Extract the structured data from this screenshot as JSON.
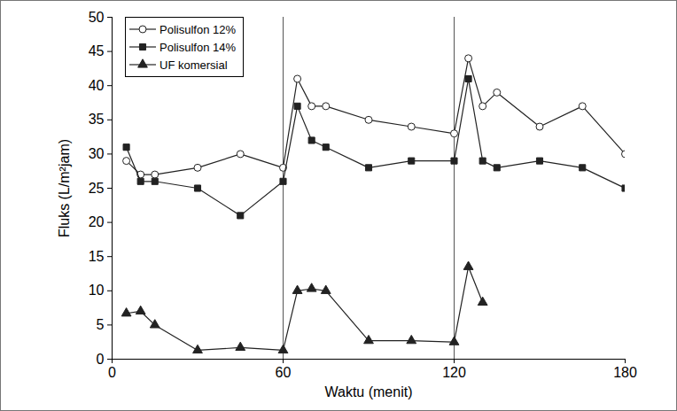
{
  "chart_data": {
    "type": "line",
    "x_label": "Waktu (menit)",
    "y_label": "Fluks (L/m²jam)",
    "x": [
      5,
      10,
      15,
      30,
      45,
      60,
      65,
      70,
      75,
      90,
      105,
      120,
      125,
      130,
      135,
      150,
      165,
      180
    ],
    "series": [
      {
        "name": "Polisulfon 12%",
        "color": "#222222",
        "marker": "circle-open",
        "values": [
          29,
          27,
          27,
          28,
          30,
          28,
          41,
          37,
          37,
          35,
          34,
          33,
          44,
          37,
          39,
          34,
          37,
          30
        ]
      },
      {
        "name": "Polisulfon 14%",
        "color": "#222222",
        "marker": "square",
        "values": [
          31,
          26,
          26,
          25,
          21,
          26,
          37,
          32,
          31,
          28,
          29,
          29,
          41,
          29,
          28,
          29,
          28,
          25
        ]
      },
      {
        "name": "UF komersial",
        "color": "#222222",
        "marker": "triangle",
        "values": [
          6.7,
          7,
          5,
          1.3,
          1.7,
          1.3,
          10,
          10.3,
          10,
          2.7,
          2.7,
          2.5,
          13.5,
          8.3,
          null,
          null,
          null,
          null
        ]
      }
    ],
    "vlines": [
      60,
      120
    ],
    "xlim": [
      0,
      180
    ],
    "xticks": [
      0,
      60,
      120,
      180
    ],
    "ylim": [
      0,
      50
    ],
    "yticks": [
      0,
      5,
      10,
      15,
      20,
      25,
      30,
      35,
      40,
      45,
      50
    ],
    "legend": "top-left",
    "grid": false
  }
}
